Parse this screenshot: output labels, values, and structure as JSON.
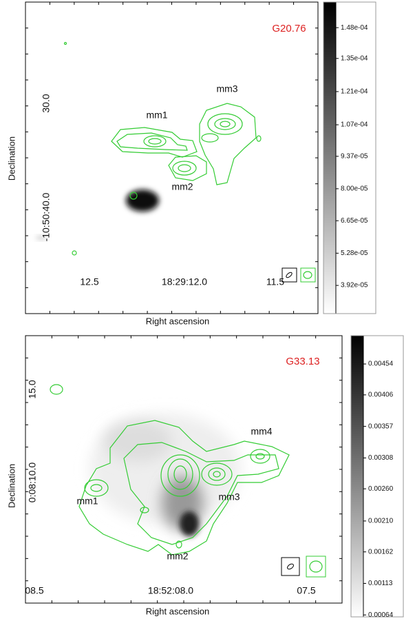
{
  "chart_data": [
    {
      "type": "image",
      "title": "G20.76",
      "xlabel": "Right ascension",
      "ylabel": "Declination",
      "xtick_labels": [
        "12.5",
        "18:29:12.0",
        "11.5"
      ],
      "ytick_labels": [
        "30.0",
        "-10:50:40.0"
      ],
      "annotations": [
        "mm1",
        "mm2",
        "mm3"
      ],
      "clim": [
        2.73e-05,
        0.0001588
      ],
      "cticks": [
        {
          "value": 0.000148,
          "label": "1.48e-04"
        },
        {
          "value": 0.000135,
          "label": "1.35e-04"
        },
        {
          "value": 0.000121,
          "label": "1.21e-04"
        },
        {
          "value": 0.000107,
          "label": "1.07e-04"
        },
        {
          "value": 9.37e-05,
          "label": "9.37e-05"
        },
        {
          "value": 8e-05,
          "label": "8.00e-05"
        },
        {
          "value": 6.65e-05,
          "label": "6.65e-05"
        },
        {
          "value": 5.28e-05,
          "label": "5.28e-05"
        },
        {
          "value": 3.92e-05,
          "label": "3.92e-05"
        }
      ]
    },
    {
      "type": "image",
      "title": "G33.13",
      "xlabel": "Right ascension",
      "ylabel": "Declination",
      "xtick_labels": [
        "08.5",
        "18:52:08.0",
        "07.5"
      ],
      "ytick_labels": [
        "15.0",
        "0:08:10.0"
      ],
      "annotations": [
        "mm1",
        "mm2",
        "mm3",
        "mm4"
      ],
      "clim": [
        0.00061,
        0.00498
      ],
      "cticks": [
        0.00454,
        0.00406,
        0.00357,
        0.00308,
        {
          "value": 0.0026,
          "label": "0.00260"
        },
        {
          "value": 0.0021,
          "label": "0.00210"
        },
        0.00162,
        0.00113,
        0.00064
      ]
    }
  ]
}
